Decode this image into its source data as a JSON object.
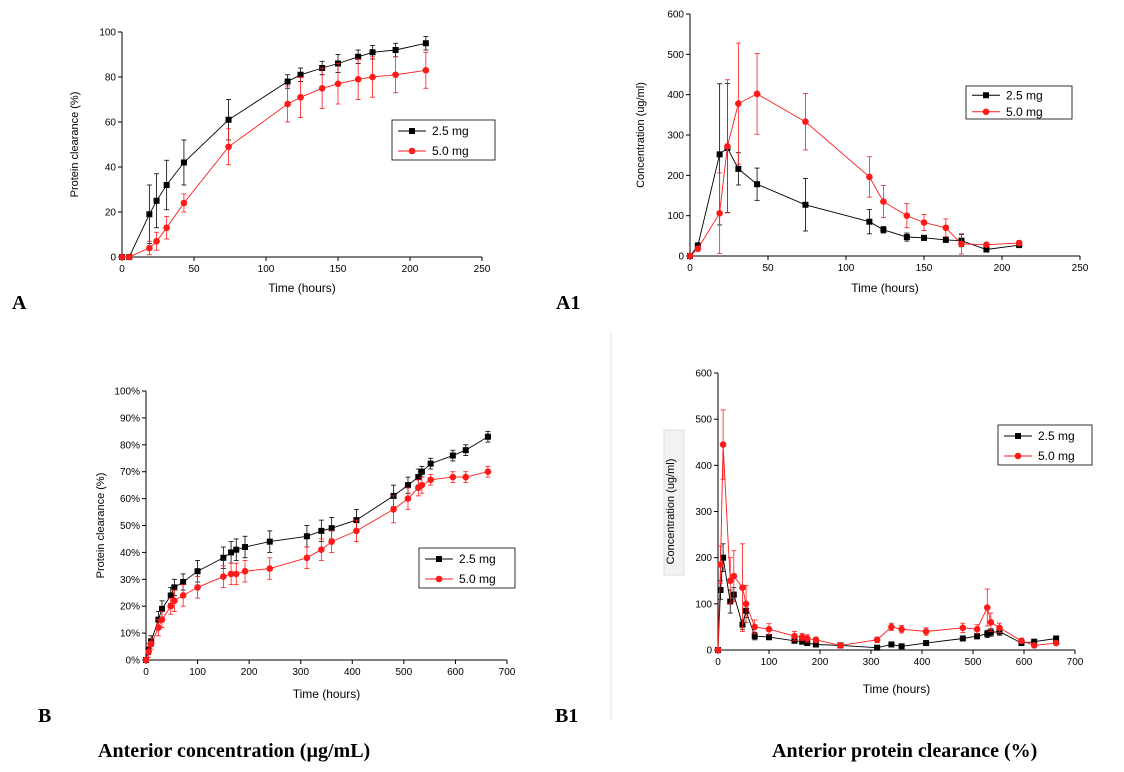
{
  "panels": {
    "A": "A",
    "A1": "A1",
    "B": "B",
    "B1": "B1"
  },
  "captions": {
    "left": "Anterior concentration (µg/mL)",
    "right": "Anterior protein clearance (%)"
  },
  "colors": {
    "series_2_5": "#000000",
    "series_5_0": "#ff1a1a"
  },
  "chart_data": [
    {
      "id": "A",
      "type": "line",
      "xlabel": "Time (hours)",
      "ylabel": "Protein clearance (%)",
      "xlim": [
        0,
        250
      ],
      "ylim": [
        0,
        100
      ],
      "xticks": [
        0,
        50,
        100,
        150,
        200,
        250
      ],
      "yticks": [
        0,
        20,
        40,
        60,
        80,
        100
      ],
      "legend": "right",
      "series": [
        {
          "name": "2.5 mg",
          "color": "#000000",
          "marker": "square",
          "x": [
            0,
            5,
            19,
            24,
            31,
            43,
            74,
            115,
            124,
            139,
            150,
            164,
            174,
            190,
            211
          ],
          "y": [
            0,
            0,
            19,
            25,
            32,
            42,
            61,
            78,
            81,
            84,
            86,
            89,
            91,
            92,
            95
          ],
          "err": [
            0,
            0,
            13,
            12,
            11,
            10,
            9,
            3,
            3,
            3,
            4,
            3,
            3,
            3,
            3
          ]
        },
        {
          "name": "5.0 mg",
          "color": "#ff1a1a",
          "marker": "circle",
          "x": [
            0,
            5,
            19,
            24,
            31,
            43,
            74,
            115,
            124,
            139,
            150,
            164,
            174,
            190,
            211
          ],
          "y": [
            0,
            0,
            4,
            7,
            13,
            24,
            49,
            68,
            71,
            75,
            77,
            79,
            80,
            81,
            83
          ],
          "err": [
            0,
            0,
            3,
            4,
            5,
            4,
            8,
            8,
            9,
            9,
            9,
            9,
            9,
            8,
            8
          ]
        }
      ]
    },
    {
      "id": "A1",
      "type": "line",
      "xlabel": "Time (hours)",
      "ylabel": "Concentration (ug/ml)",
      "xlim": [
        0,
        250
      ],
      "ylim": [
        0,
        600
      ],
      "xticks": [
        0,
        50,
        100,
        150,
        200,
        250
      ],
      "yticks": [
        0,
        100,
        200,
        300,
        400,
        500,
        600
      ],
      "legend": "right",
      "series": [
        {
          "name": "2.5 mg",
          "color": "#000000",
          "marker": "square",
          "x": [
            0,
            5,
            19,
            24,
            31,
            43,
            74,
            115,
            124,
            139,
            150,
            164,
            174,
            190,
            211
          ],
          "y": [
            0,
            25,
            252,
            268,
            216,
            178,
            127,
            85,
            65,
            47,
            45,
            40,
            38,
            16,
            27
          ],
          "err": [
            0,
            8,
            175,
            160,
            40,
            40,
            65,
            30,
            8,
            10,
            6,
            6,
            15,
            4,
            5
          ]
        },
        {
          "name": "5.0 mg",
          "color": "#ff1a1a",
          "marker": "circle",
          "x": [
            0,
            5,
            19,
            24,
            31,
            43,
            74,
            115,
            124,
            139,
            150,
            164,
            174,
            190,
            211
          ],
          "y": [
            0,
            18,
            106,
            272,
            378,
            402,
            333,
            196,
            135,
            100,
            83,
            70,
            30,
            28,
            32
          ],
          "err": [
            0,
            5,
            100,
            165,
            150,
            100,
            70,
            50,
            40,
            30,
            20,
            22,
            25,
            5,
            6
          ]
        }
      ]
    },
    {
      "id": "B",
      "type": "line",
      "xlabel": "Time (hours)",
      "ylabel": "Protein clearance (%)",
      "xlim": [
        0,
        700
      ],
      "ylim": [
        0,
        100
      ],
      "xticks": [
        0,
        100,
        200,
        300,
        400,
        500,
        600,
        700
      ],
      "yticks": [
        0,
        10,
        20,
        30,
        40,
        50,
        60,
        70,
        80,
        90,
        100
      ],
      "legend": "right",
      "series": [
        {
          "name": "2.5 mg",
          "color": "#000000",
          "marker": "square",
          "x": [
            0,
            5,
            10,
            24,
            31,
            48,
            55,
            72,
            100,
            150,
            165,
            175,
            192,
            240,
            312,
            340,
            360,
            408,
            480,
            508,
            528,
            535,
            552,
            595,
            620,
            663
          ],
          "y": [
            0,
            4,
            7,
            15,
            19,
            24,
            27,
            29,
            33,
            38,
            40,
            41,
            42,
            44,
            46,
            48,
            49,
            52,
            61,
            65,
            68,
            70,
            73,
            76,
            78,
            83
          ],
          "err": [
            0,
            2,
            2,
            3,
            3,
            3,
            3,
            3,
            4,
            4,
            4,
            4,
            4,
            4,
            4,
            4,
            4,
            4,
            4,
            3,
            3,
            2,
            2,
            2,
            2,
            2
          ]
        },
        {
          "name": "5.0 mg",
          "color": "#ff1a1a",
          "marker": "circle",
          "x": [
            0,
            5,
            10,
            24,
            31,
            48,
            55,
            72,
            100,
            150,
            165,
            175,
            192,
            240,
            312,
            340,
            360,
            408,
            480,
            508,
            528,
            535,
            552,
            595,
            620,
            663
          ],
          "y": [
            0,
            3,
            6,
            12,
            15,
            20,
            22,
            24,
            27,
            31,
            32,
            32,
            33,
            34,
            38,
            41,
            44,
            48,
            56,
            60,
            64,
            65,
            67,
            68,
            68,
            70
          ],
          "err": [
            0,
            2,
            2,
            3,
            3,
            3,
            4,
            4,
            4,
            4,
            4,
            4,
            4,
            4,
            4,
            4,
            4,
            4,
            5,
            4,
            3,
            3,
            2,
            2,
            2,
            2
          ]
        }
      ]
    },
    {
      "id": "B1",
      "type": "line",
      "xlabel": "Time (hours)",
      "ylabel": "Concentration  (ug/ml)",
      "xlim": [
        0,
        700
      ],
      "ylim": [
        0,
        600
      ],
      "xticks": [
        0,
        100,
        200,
        300,
        400,
        500,
        600,
        700
      ],
      "yticks": [
        0,
        100,
        200,
        300,
        400,
        500,
        600
      ],
      "legend": "right",
      "series": [
        {
          "name": "2.5 mg",
          "color": "#000000",
          "marker": "square",
          "x": [
            0,
            5,
            10,
            24,
            31,
            48,
            55,
            72,
            100,
            150,
            165,
            175,
            192,
            240,
            312,
            340,
            360,
            408,
            480,
            508,
            528,
            535,
            552,
            595,
            620,
            663
          ],
          "y": [
            0,
            130,
            200,
            105,
            120,
            55,
            85,
            30,
            28,
            20,
            18,
            15,
            12,
            10,
            5,
            12,
            8,
            15,
            25,
            30,
            35,
            38,
            40,
            15,
            18,
            25
          ],
          "err": [
            0,
            20,
            30,
            25,
            15,
            10,
            15,
            8,
            6,
            5,
            5,
            4,
            4,
            3,
            3,
            4,
            3,
            4,
            5,
            6,
            8,
            8,
            8,
            4,
            4,
            5
          ]
        },
        {
          "name": "5.0 mg",
          "color": "#ff1a1a",
          "marker": "circle",
          "x": [
            0,
            5,
            10,
            24,
            31,
            48,
            55,
            72,
            100,
            150,
            165,
            175,
            192,
            240,
            312,
            340,
            360,
            408,
            480,
            508,
            528,
            535,
            552,
            595,
            620,
            663
          ],
          "y": [
            0,
            185,
            445,
            150,
            160,
            135,
            100,
            50,
            45,
            30,
            28,
            25,
            22,
            10,
            22,
            50,
            45,
            40,
            48,
            45,
            92,
            60,
            48,
            20,
            10,
            15
          ],
          "err": [
            0,
            40,
            75,
            50,
            55,
            95,
            40,
            15,
            12,
            10,
            8,
            8,
            6,
            4,
            6,
            8,
            8,
            8,
            10,
            10,
            40,
            20,
            10,
            5,
            3,
            4
          ]
        }
      ]
    }
  ]
}
